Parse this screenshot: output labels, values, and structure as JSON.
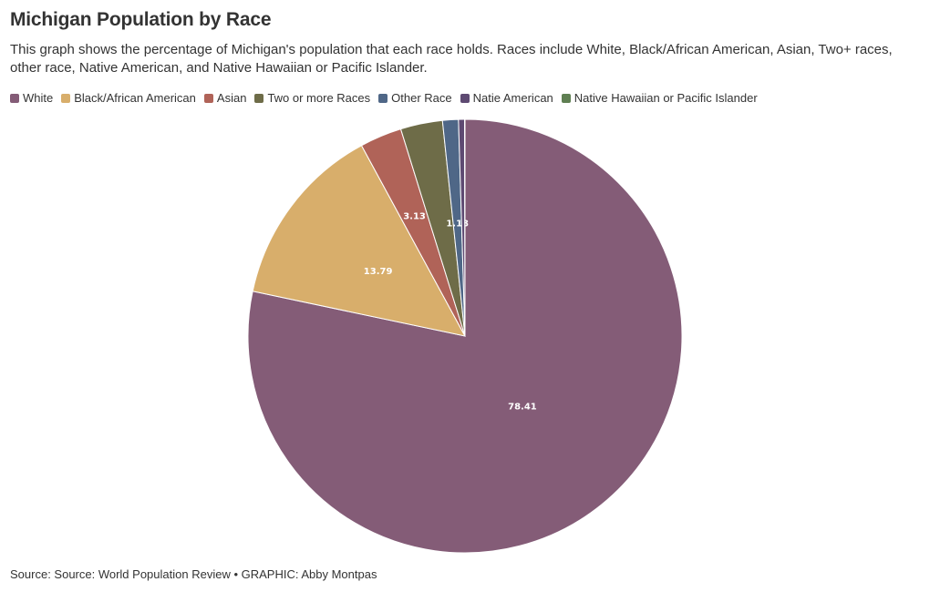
{
  "title": "Michigan Population by Race",
  "subtitle": "This graph shows the percentage of Michigan's population that each race holds. Races include White, Black/African American, Asian, Two+ races, other race, Native American, and Native Hawaiian or Pacific Islander.",
  "source": "Source: Source: World Population Review • GRAPHIC: Abby Montpas",
  "chart_data": {
    "type": "pie",
    "start_angle": "12 o'clock",
    "direction": "clockwise",
    "categories": [
      "White",
      "Black/African American",
      "Asian",
      "Two or more Races",
      "Other Race",
      "Natie American",
      "Native Hawaiian or Pacific Islander"
    ],
    "values": [
      78.41,
      13.79,
      3.13,
      3.13,
      1.18,
      0.45,
      0.03
    ],
    "data_labels": [
      "78.41",
      "13.79",
      "3.13",
      null,
      "1.18",
      null,
      null
    ],
    "colors": [
      "#845c77",
      "#d8ae6b",
      "#b06358",
      "#6e6c48",
      "#4f6787",
      "#5e4a72",
      "#5f7f52"
    ],
    "legend_position": "top-left",
    "slice_border_color": "#ffffff"
  }
}
